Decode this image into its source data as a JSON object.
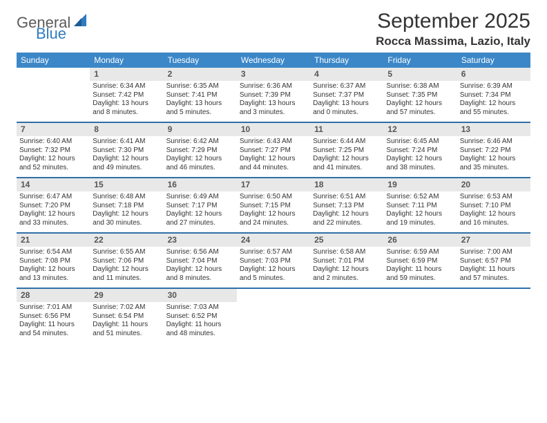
{
  "brand": {
    "general": "General",
    "blue": "Blue",
    "sail_color": "#2f7bbf"
  },
  "header": {
    "title": "September 2025",
    "location": "Rocca Massima, Lazio, Italy"
  },
  "colors": {
    "header_bg": "#3b87c8",
    "row_divider": "#2f6fa8",
    "daynum_bg": "#e8e8e8"
  },
  "dow": [
    "Sunday",
    "Monday",
    "Tuesday",
    "Wednesday",
    "Thursday",
    "Friday",
    "Saturday"
  ],
  "weeks": [
    [
      {
        "n": "",
        "empty": true
      },
      {
        "n": "1",
        "sr": "Sunrise: 6:34 AM",
        "ss": "Sunset: 7:42 PM",
        "dl": "Daylight: 13 hours and 8 minutes."
      },
      {
        "n": "2",
        "sr": "Sunrise: 6:35 AM",
        "ss": "Sunset: 7:41 PM",
        "dl": "Daylight: 13 hours and 5 minutes."
      },
      {
        "n": "3",
        "sr": "Sunrise: 6:36 AM",
        "ss": "Sunset: 7:39 PM",
        "dl": "Daylight: 13 hours and 3 minutes."
      },
      {
        "n": "4",
        "sr": "Sunrise: 6:37 AM",
        "ss": "Sunset: 7:37 PM",
        "dl": "Daylight: 13 hours and 0 minutes."
      },
      {
        "n": "5",
        "sr": "Sunrise: 6:38 AM",
        "ss": "Sunset: 7:35 PM",
        "dl": "Daylight: 12 hours and 57 minutes."
      },
      {
        "n": "6",
        "sr": "Sunrise: 6:39 AM",
        "ss": "Sunset: 7:34 PM",
        "dl": "Daylight: 12 hours and 55 minutes."
      }
    ],
    [
      {
        "n": "7",
        "sr": "Sunrise: 6:40 AM",
        "ss": "Sunset: 7:32 PM",
        "dl": "Daylight: 12 hours and 52 minutes."
      },
      {
        "n": "8",
        "sr": "Sunrise: 6:41 AM",
        "ss": "Sunset: 7:30 PM",
        "dl": "Daylight: 12 hours and 49 minutes."
      },
      {
        "n": "9",
        "sr": "Sunrise: 6:42 AM",
        "ss": "Sunset: 7:29 PM",
        "dl": "Daylight: 12 hours and 46 minutes."
      },
      {
        "n": "10",
        "sr": "Sunrise: 6:43 AM",
        "ss": "Sunset: 7:27 PM",
        "dl": "Daylight: 12 hours and 44 minutes."
      },
      {
        "n": "11",
        "sr": "Sunrise: 6:44 AM",
        "ss": "Sunset: 7:25 PM",
        "dl": "Daylight: 12 hours and 41 minutes."
      },
      {
        "n": "12",
        "sr": "Sunrise: 6:45 AM",
        "ss": "Sunset: 7:24 PM",
        "dl": "Daylight: 12 hours and 38 minutes."
      },
      {
        "n": "13",
        "sr": "Sunrise: 6:46 AM",
        "ss": "Sunset: 7:22 PM",
        "dl": "Daylight: 12 hours and 35 minutes."
      }
    ],
    [
      {
        "n": "14",
        "sr": "Sunrise: 6:47 AM",
        "ss": "Sunset: 7:20 PM",
        "dl": "Daylight: 12 hours and 33 minutes."
      },
      {
        "n": "15",
        "sr": "Sunrise: 6:48 AM",
        "ss": "Sunset: 7:18 PM",
        "dl": "Daylight: 12 hours and 30 minutes."
      },
      {
        "n": "16",
        "sr": "Sunrise: 6:49 AM",
        "ss": "Sunset: 7:17 PM",
        "dl": "Daylight: 12 hours and 27 minutes."
      },
      {
        "n": "17",
        "sr": "Sunrise: 6:50 AM",
        "ss": "Sunset: 7:15 PM",
        "dl": "Daylight: 12 hours and 24 minutes."
      },
      {
        "n": "18",
        "sr": "Sunrise: 6:51 AM",
        "ss": "Sunset: 7:13 PM",
        "dl": "Daylight: 12 hours and 22 minutes."
      },
      {
        "n": "19",
        "sr": "Sunrise: 6:52 AM",
        "ss": "Sunset: 7:11 PM",
        "dl": "Daylight: 12 hours and 19 minutes."
      },
      {
        "n": "20",
        "sr": "Sunrise: 6:53 AM",
        "ss": "Sunset: 7:10 PM",
        "dl": "Daylight: 12 hours and 16 minutes."
      }
    ],
    [
      {
        "n": "21",
        "sr": "Sunrise: 6:54 AM",
        "ss": "Sunset: 7:08 PM",
        "dl": "Daylight: 12 hours and 13 minutes."
      },
      {
        "n": "22",
        "sr": "Sunrise: 6:55 AM",
        "ss": "Sunset: 7:06 PM",
        "dl": "Daylight: 12 hours and 11 minutes."
      },
      {
        "n": "23",
        "sr": "Sunrise: 6:56 AM",
        "ss": "Sunset: 7:04 PM",
        "dl": "Daylight: 12 hours and 8 minutes."
      },
      {
        "n": "24",
        "sr": "Sunrise: 6:57 AM",
        "ss": "Sunset: 7:03 PM",
        "dl": "Daylight: 12 hours and 5 minutes."
      },
      {
        "n": "25",
        "sr": "Sunrise: 6:58 AM",
        "ss": "Sunset: 7:01 PM",
        "dl": "Daylight: 12 hours and 2 minutes."
      },
      {
        "n": "26",
        "sr": "Sunrise: 6:59 AM",
        "ss": "Sunset: 6:59 PM",
        "dl": "Daylight: 11 hours and 59 minutes."
      },
      {
        "n": "27",
        "sr": "Sunrise: 7:00 AM",
        "ss": "Sunset: 6:57 PM",
        "dl": "Daylight: 11 hours and 57 minutes."
      }
    ],
    [
      {
        "n": "28",
        "sr": "Sunrise: 7:01 AM",
        "ss": "Sunset: 6:56 PM",
        "dl": "Daylight: 11 hours and 54 minutes."
      },
      {
        "n": "29",
        "sr": "Sunrise: 7:02 AM",
        "ss": "Sunset: 6:54 PM",
        "dl": "Daylight: 11 hours and 51 minutes."
      },
      {
        "n": "30",
        "sr": "Sunrise: 7:03 AM",
        "ss": "Sunset: 6:52 PM",
        "dl": "Daylight: 11 hours and 48 minutes."
      },
      {
        "n": "",
        "empty": true
      },
      {
        "n": "",
        "empty": true
      },
      {
        "n": "",
        "empty": true
      },
      {
        "n": "",
        "empty": true
      }
    ]
  ]
}
